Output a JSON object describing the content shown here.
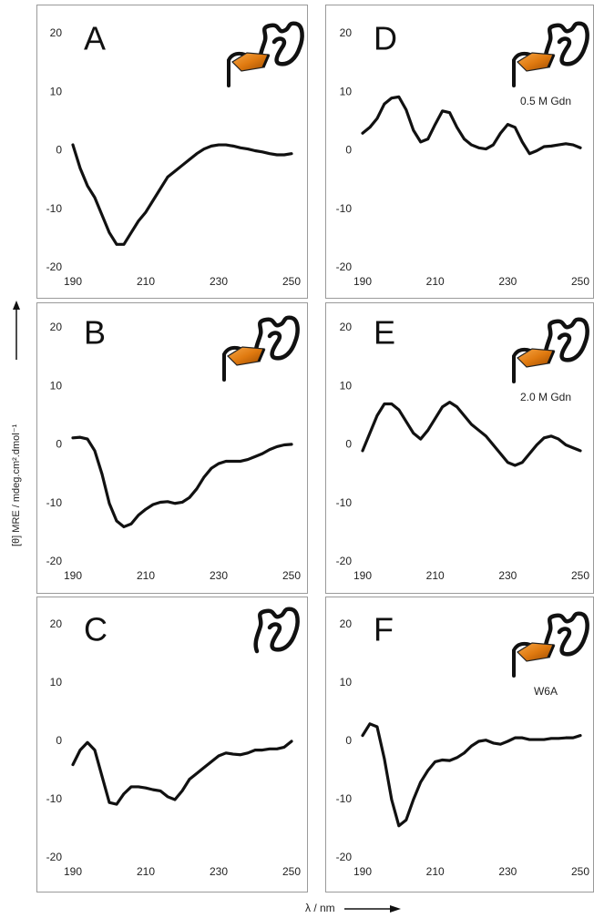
{
  "figure": {
    "ylabel": "[θ] MRE / mdeg.cm².dmol⁻¹",
    "xlabel": "λ / nm"
  },
  "chart_data": [
    {
      "type": "line",
      "title": "A",
      "x": [
        190,
        192,
        194,
        196,
        198,
        200,
        202,
        204,
        206,
        208,
        210,
        212,
        214,
        216,
        218,
        220,
        222,
        224,
        226,
        228,
        230,
        232,
        234,
        236,
        238,
        240,
        242,
        244,
        246,
        248,
        250
      ],
      "series": [
        {
          "color": "#111111",
          "values": [
            1,
            -3,
            -6,
            -8,
            -11,
            -14,
            -16,
            -16,
            -14,
            -12,
            -10.5,
            -8.5,
            -6.5,
            -4.5,
            -3.5,
            -2.5,
            -1.5,
            -0.5,
            0.3,
            0.8,
            1,
            1,
            0.8,
            0.5,
            0.3,
            0,
            -0.2,
            -0.5,
            -0.7,
            -0.7,
            -0.5
          ]
        }
      ],
      "xlim": [
        190,
        250
      ],
      "ylim": [
        -20,
        20
      ],
      "xticks": [
        190,
        210,
        230,
        250
      ],
      "yticks": [
        -20,
        -10,
        0,
        10,
        20
      ]
    },
    {
      "type": "line",
      "title": "B",
      "x": [
        190,
        192,
        194,
        196,
        198,
        200,
        202,
        204,
        206,
        208,
        210,
        212,
        214,
        216,
        218,
        220,
        222,
        224,
        226,
        228,
        230,
        232,
        234,
        236,
        238,
        240,
        242,
        244,
        246,
        248,
        250
      ],
      "series": [
        {
          "color": "#111111",
          "values": [
            1.2,
            1.3,
            1,
            -1,
            -5,
            -10,
            -13,
            -14,
            -13.5,
            -12,
            -11,
            -10.2,
            -9.8,
            -9.7,
            -10,
            -9.8,
            -9,
            -7.5,
            -5.5,
            -4,
            -3.2,
            -2.8,
            -2.8,
            -2.8,
            -2.5,
            -2,
            -1.5,
            -0.8,
            -0.3,
            0,
            0.1
          ]
        }
      ],
      "xlim": [
        190,
        250
      ],
      "ylim": [
        -20,
        20
      ],
      "xticks": [
        190,
        210,
        230,
        250
      ],
      "yticks": [
        -20,
        -10,
        0,
        10,
        20
      ]
    },
    {
      "type": "line",
      "title": "C",
      "x": [
        190,
        192,
        194,
        196,
        198,
        200,
        202,
        204,
        206,
        208,
        210,
        212,
        214,
        216,
        218,
        220,
        222,
        224,
        226,
        228,
        230,
        232,
        234,
        236,
        238,
        240,
        242,
        244,
        246,
        248,
        250
      ],
      "series": [
        {
          "color": "#111111",
          "values": [
            -4,
            -1.5,
            -0.2,
            -1.5,
            -6,
            -10.5,
            -10.8,
            -9,
            -7.8,
            -7.8,
            -8,
            -8.3,
            -8.5,
            -9.5,
            -10,
            -8.5,
            -6.5,
            -5.5,
            -4.5,
            -3.5,
            -2.5,
            -2,
            -2.2,
            -2.3,
            -2,
            -1.5,
            -1.5,
            -1.3,
            -1.3,
            -1,
            0
          ]
        }
      ],
      "xlim": [
        190,
        250
      ],
      "ylim": [
        -20,
        20
      ],
      "xticks": [
        190,
        210,
        230,
        250
      ],
      "yticks": [
        -20,
        -10,
        0,
        10,
        20
      ]
    },
    {
      "type": "line",
      "title": "D",
      "annotation": "0.5 M Gdn",
      "x": [
        190,
        192,
        194,
        196,
        198,
        200,
        202,
        204,
        206,
        208,
        210,
        212,
        214,
        216,
        218,
        220,
        222,
        224,
        226,
        228,
        230,
        232,
        234,
        236,
        238,
        240,
        242,
        244,
        246,
        248,
        250
      ],
      "series": [
        {
          "color": "#111111",
          "values": [
            3,
            4,
            5.5,
            8,
            9,
            9.2,
            7,
            3.5,
            1.5,
            2,
            4.5,
            6.8,
            6.5,
            4,
            2,
            1,
            0.5,
            0.3,
            1,
            3,
            4.5,
            4,
            1.5,
            -0.5,
            0,
            0.7,
            0.8,
            1,
            1.2,
            1,
            0.5
          ]
        }
      ],
      "xlim": [
        190,
        250
      ],
      "ylim": [
        -20,
        20
      ],
      "xticks": [
        190,
        210,
        230,
        250
      ],
      "yticks": [
        -20,
        -10,
        0,
        10,
        20
      ]
    },
    {
      "type": "line",
      "title": "E",
      "annotation": "2.0 M Gdn",
      "x": [
        190,
        192,
        194,
        196,
        198,
        200,
        202,
        204,
        206,
        208,
        210,
        212,
        214,
        216,
        218,
        220,
        222,
        224,
        226,
        228,
        230,
        232,
        234,
        236,
        238,
        240,
        242,
        244,
        246,
        248,
        250
      ],
      "series": [
        {
          "color": "#111111",
          "values": [
            -1,
            2,
            5,
            7,
            7,
            6,
            4,
            2,
            1,
            2.5,
            4.5,
            6.5,
            7.3,
            6.5,
            5,
            3.5,
            2.5,
            1.5,
            0,
            -1.5,
            -3,
            -3.5,
            -3,
            -1.5,
            0,
            1.2,
            1.5,
            1,
            0,
            -0.5,
            -1
          ]
        }
      ],
      "xlim": [
        190,
        250
      ],
      "ylim": [
        -20,
        20
      ],
      "xticks": [
        190,
        210,
        230,
        250
      ],
      "yticks": [
        -20,
        -10,
        0,
        10,
        20
      ]
    },
    {
      "type": "line",
      "title": "F",
      "annotation": "W6A",
      "x": [
        190,
        192,
        194,
        196,
        198,
        200,
        202,
        204,
        206,
        208,
        210,
        212,
        214,
        216,
        218,
        220,
        222,
        224,
        226,
        228,
        230,
        232,
        234,
        236,
        238,
        240,
        242,
        244,
        246,
        248,
        250
      ],
      "series": [
        {
          "color": "#111111",
          "values": [
            1,
            3,
            2.5,
            -3,
            -10,
            -14.5,
            -13.5,
            -10,
            -7,
            -5,
            -3.5,
            -3.2,
            -3.3,
            -2.8,
            -2,
            -0.8,
            0,
            0.2,
            -0.3,
            -0.5,
            0,
            0.6,
            0.6,
            0.3,
            0.3,
            0.3,
            0.5,
            0.5,
            0.6,
            0.6,
            1
          ]
        }
      ],
      "xlim": [
        190,
        250
      ],
      "ylim": [
        -20,
        20
      ],
      "xticks": [
        190,
        210,
        230,
        250
      ],
      "yticks": [
        -20,
        -10,
        0,
        10,
        20
      ]
    }
  ]
}
